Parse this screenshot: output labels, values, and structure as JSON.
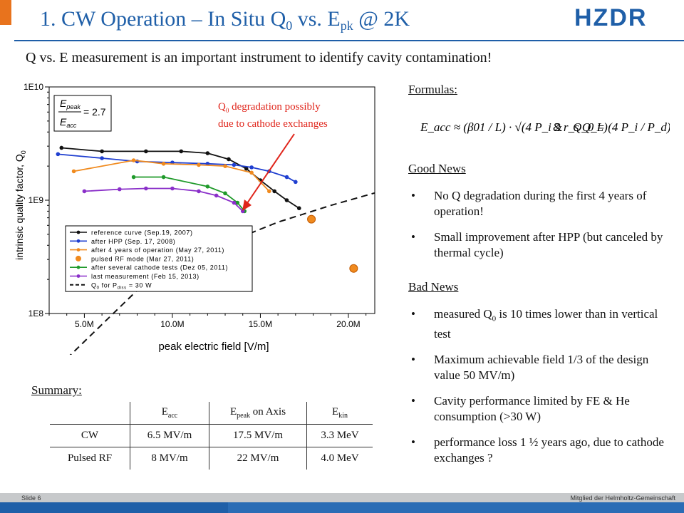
{
  "header": {
    "title_main": "1. CW Operation – In Situ Q",
    "title_sub0": "0",
    "title_mid": " vs. E",
    "title_subpk": "pk",
    "title_end": " @ 2K",
    "logo_text": "HZDR",
    "accent": "#1f5fa8",
    "corner_color": "#e8731d"
  },
  "subtitle": "Q vs. E measurement is an important instrument to identify cavity contamination!",
  "annotation": {
    "line1_a": "Q",
    "line1_sub": "0",
    "line1_b": " degradation possibly",
    "line2": "due to cathode exchanges"
  },
  "chart_data": {
    "type": "scatter",
    "xlabel": "peak electric field [V/m]",
    "ylabel": "intrinsic quality factor, Q",
    "ylabel_sub": "0",
    "x_ticks": [
      "5.0M",
      "10.0M",
      "15.0M",
      "20.0M"
    ],
    "x_tick_values": [
      5,
      10,
      15,
      20
    ],
    "y_ticks": [
      "1E10",
      "1E9",
      "1E8"
    ],
    "y_tick_values": [
      10,
      9,
      8
    ],
    "xlim": [
      3,
      21.5
    ],
    "ylim_log10": [
      8,
      10
    ],
    "ratio_box": {
      "num": "E",
      "num_sub": "peak",
      "den": "E",
      "den_sub": "acc",
      "value": "= 2.7"
    },
    "series": [
      {
        "name": "reference curve (Sep.19, 2007)",
        "color": "#111111",
        "marker": "dot",
        "x": [
          3.7,
          6.0,
          8.5,
          10.5,
          12.0,
          13.2,
          14.2,
          15.0,
          15.8,
          16.5,
          17.2
        ],
        "y": [
          2900000000.0,
          2700000000.0,
          2700000000.0,
          2700000000.0,
          2600000000.0,
          2300000000.0,
          1900000000.0,
          1500000000.0,
          1200000000.0,
          1000000000.0,
          850000000.0
        ]
      },
      {
        "name": "after HPP (Sep. 17, 2008)",
        "color": "#1f3fd0",
        "marker": "dot",
        "x": [
          3.5,
          6.0,
          8.0,
          10.0,
          12.0,
          13.5,
          14.5,
          15.5,
          16.5,
          17.0
        ],
        "y": [
          2550000000.0,
          2350000000.0,
          2200000000.0,
          2150000000.0,
          2100000000.0,
          2050000000.0,
          1950000000.0,
          1800000000.0,
          1600000000.0,
          1450000000.0
        ]
      },
      {
        "name": "after 4 years of operation (May 27, 2011)",
        "color": "#f08a1e",
        "marker": "dot",
        "x": [
          4.4,
          7.8,
          9.5,
          11.5,
          13.0,
          14.5,
          15.5
        ],
        "y": [
          1800000000.0,
          2250000000.0,
          2100000000.0,
          2050000000.0,
          2000000000.0,
          1750000000.0,
          1200000000.0
        ]
      },
      {
        "name": "pulsed RF mode (Mar 27, 2011)",
        "color": "#f08a1e",
        "marker": "big-dot",
        "x": [
          17.9,
          20.3
        ],
        "y": [
          680000000.0,
          250000000.0
        ]
      },
      {
        "name": "after several cathode tests (Dez 05, 2011)",
        "color": "#1f9a2a",
        "marker": "dot",
        "x": [
          7.8,
          9.5,
          12.0,
          13.0,
          13.7,
          14.1
        ],
        "y": [
          1600000000.0,
          1600000000.0,
          1320000000.0,
          1150000000.0,
          950000000.0,
          800000000.0
        ]
      },
      {
        "name": "last measurement (Feb 15, 2013)",
        "color": "#8a2fc9",
        "marker": "dot",
        "x": [
          5.0,
          7.0,
          8.5,
          10.0,
          11.5,
          12.5,
          13.5,
          14.0
        ],
        "y": [
          1200000000.0,
          1250000000.0,
          1270000000.0,
          1270000000.0,
          1200000000.0,
          1100000000.0,
          950000000.0,
          800000000.0
        ]
      },
      {
        "name": "Q",
        "name_sub": "0",
        "name_mid": " for P",
        "name_sub2": "diss",
        "name_end": " = 30 W",
        "color": "#111111",
        "marker": "dashed",
        "x": [
          4.0,
          8.0,
          12.0,
          16.0,
          19.0,
          21.5
        ],
        "y": [
          40000000.0,
          160000000.0,
          360000000.0,
          640000000.0,
          900000000.0,
          1160000000.0
        ]
      }
    ]
  },
  "formulas": {
    "label": "Formulas:",
    "f1": "E_acc ≈ (β01 / L) · √(4 P_i 2 r_s Q_L)",
    "amp": "&",
    "f2": "Q_0 = (4 P_i / P_d) · Q_L"
  },
  "good_news": {
    "label": "Good News",
    "items": [
      "No Q degradation during the first 4 years of operation!",
      "Small improvement after HPP (but canceled by thermal cycle)"
    ]
  },
  "bad_news": {
    "label": "Bad News",
    "item1_a": "measured Q",
    "item1_sub": "0",
    "item1_b": " is 10 times lower than in vertical test",
    "items": [
      "Maximum achievable field 1/3 of the design value 50 MV/m)",
      "Cavity performance limited by FE & He consumption (>30 W)",
      "performance loss 1 ½ years ago, due to cathode exchanges ?"
    ]
  },
  "summary": {
    "label": "Summary:",
    "headers": [
      {
        "main": "E",
        "sub": "acc",
        "rest": ""
      },
      {
        "main": "E",
        "sub": "peak",
        "rest": " on Axis"
      },
      {
        "main": "E",
        "sub": "kin",
        "rest": ""
      }
    ],
    "rows": [
      {
        "name": "CW",
        "eacc": "6.5 MV/m",
        "epeak": "17.5 MV/m",
        "ekin": "3.3 MeV"
      },
      {
        "name": "Pulsed RF",
        "eacc": "8 MV/m",
        "epeak": "22 MV/m",
        "ekin": "4.0 MeV"
      }
    ]
  },
  "footer": {
    "slide": "Slide 6",
    "helmholtz": "Mitglied der Helmholtz-Gemeinschaft"
  }
}
